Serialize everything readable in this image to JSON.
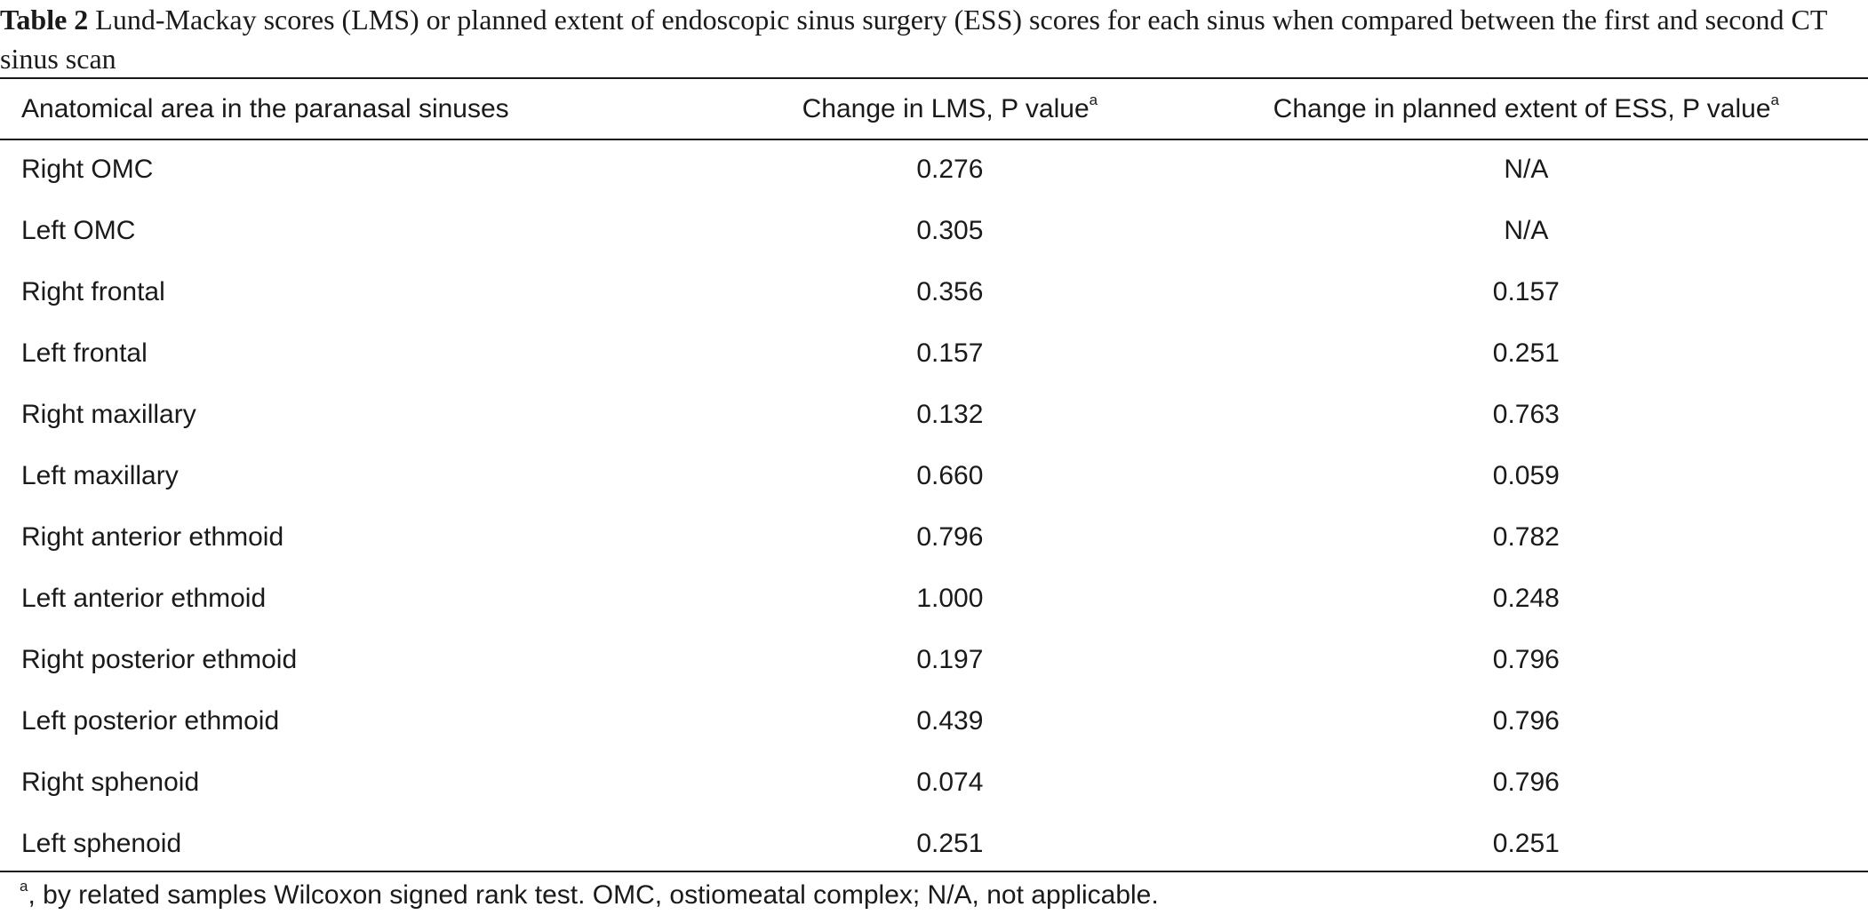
{
  "caption": {
    "label": "Table 2",
    "text": "Lund-Mackay scores (LMS) or planned extent of endoscopic sinus surgery (ESS) scores for each sinus when compared between the first and second CT sinus scan"
  },
  "table": {
    "headers": {
      "area": "Anatomical area in the paranasal sinuses",
      "lms": "Change in LMS, P value",
      "lms_sup": "a",
      "ess": "Change in planned extent of ESS, P value",
      "ess_sup": "a"
    },
    "rows": [
      {
        "area": "Right OMC",
        "lms": "0.276",
        "ess": "N/A"
      },
      {
        "area": "Left OMC",
        "lms": "0.305",
        "ess": "N/A"
      },
      {
        "area": "Right frontal",
        "lms": "0.356",
        "ess": "0.157"
      },
      {
        "area": "Left frontal",
        "lms": "0.157",
        "ess": "0.251"
      },
      {
        "area": "Right maxillary",
        "lms": "0.132",
        "ess": "0.763"
      },
      {
        "area": "Left maxillary",
        "lms": "0.660",
        "ess": "0.059"
      },
      {
        "area": "Right anterior ethmoid",
        "lms": "0.796",
        "ess": "0.782"
      },
      {
        "area": "Left anterior ethmoid",
        "lms": "1.000",
        "ess": "0.248"
      },
      {
        "area": "Right posterior ethmoid",
        "lms": "0.197",
        "ess": "0.796"
      },
      {
        "area": "Left posterior ethmoid",
        "lms": "0.439",
        "ess": "0.796"
      },
      {
        "area": "Right sphenoid",
        "lms": "0.074",
        "ess": "0.796"
      },
      {
        "area": "Left sphenoid",
        "lms": "0.251",
        "ess": "0.251"
      }
    ]
  },
  "footnote": {
    "sup": "a",
    "text": ", by related samples Wilcoxon signed rank test. OMC, ostiomeatal complex; N/A, not applicable."
  }
}
